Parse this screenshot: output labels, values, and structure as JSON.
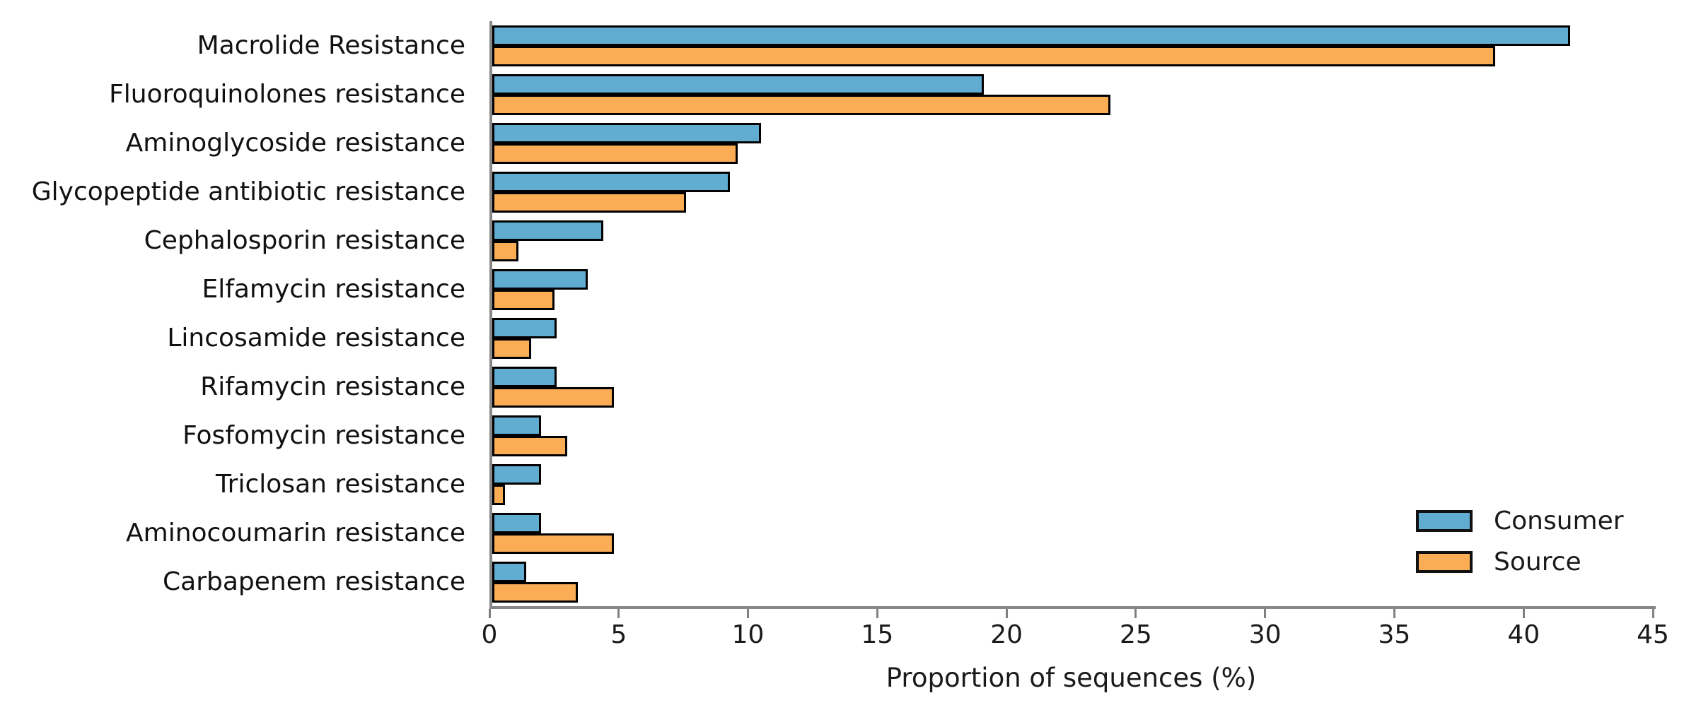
{
  "chart_data": {
    "type": "bar",
    "orientation": "horizontal",
    "title": "",
    "xlabel": "Proportion of sequences (%)",
    "ylabel": "",
    "xlim": [
      0,
      45
    ],
    "xticks": [
      0,
      5,
      10,
      15,
      20,
      25,
      30,
      35,
      40,
      45
    ],
    "grid": false,
    "legend_position": "lower right",
    "bar_border_color": "#000000",
    "spine_color": "#888888",
    "categories": [
      "Macrolide Resistance",
      "Fluoroquinolones resistance",
      "Aminoglycoside resistance",
      "Glycopeptide antibiotic resistance",
      "Cephalosporin resistance",
      "Elfamycin resistance",
      "Lincosamide resistance",
      "Rifamycin resistance",
      "Fosfomycin resistance",
      "Triclosan resistance",
      "Aminocoumarin resistance",
      "Carbapenem resistance"
    ],
    "series": [
      {
        "name": "Consumer",
        "color": "#61ADD2",
        "values": [
          41.7,
          19.0,
          10.4,
          9.2,
          4.3,
          3.7,
          2.5,
          2.5,
          1.9,
          1.9,
          1.9,
          1.3
        ]
      },
      {
        "name": "Source",
        "color": "#FBAD55",
        "values": [
          38.8,
          23.9,
          9.5,
          7.5,
          1.0,
          2.4,
          1.5,
          4.7,
          2.9,
          0.5,
          4.7,
          3.3
        ]
      }
    ]
  },
  "legend": {
    "items": [
      {
        "label": "Consumer",
        "color": "#61ADD2"
      },
      {
        "label": "Source",
        "color": "#FBAD55"
      }
    ]
  }
}
